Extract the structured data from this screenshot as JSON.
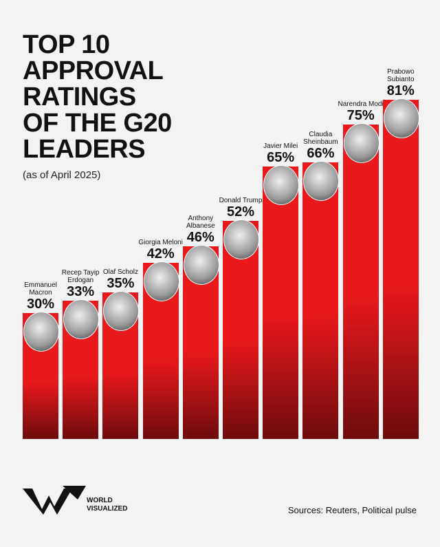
{
  "chart_data": {
    "type": "bar",
    "title": "TOP 10\nAPPROVAL\nRATINGS\nOF THE G20\nLEADERS",
    "subtitle": "(as of April 2025)",
    "categories": [
      "Emmanuel Macron",
      "Recep Tayip Erdogan",
      "Olaf Scholz",
      "Giorgia Meloni",
      "Anthony Albanese",
      "Donald Trump",
      "Javier Milei",
      "Claudia Sheinbaum",
      "Narendra Modi",
      "Prabowo Subianto"
    ],
    "values": [
      30,
      33,
      35,
      42,
      46,
      52,
      65,
      66,
      75,
      81
    ],
    "value_labels": [
      "30%",
      "33%",
      "35%",
      "42%",
      "46%",
      "52%",
      "65%",
      "66%",
      "75%",
      "81%"
    ],
    "color": "#e8181b",
    "brand": "WORLD VISUALIZED",
    "source": "Sources: Reuters, Political pulse"
  }
}
